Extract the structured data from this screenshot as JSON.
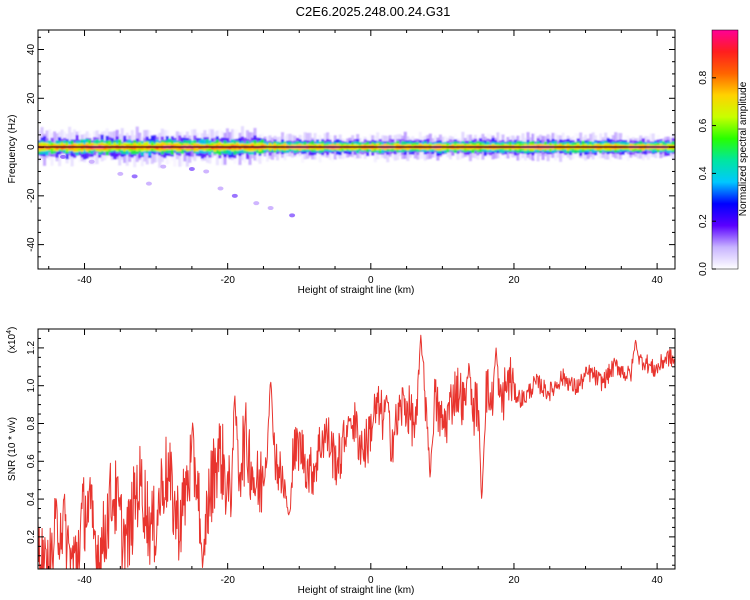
{
  "title": "C2E6.2025.248.00.24.G31",
  "chart_data": [
    {
      "type": "heatmap",
      "title": "C2E6.2025.248.00.24.G31",
      "xlabel": "Height of straight line (km)",
      "ylabel": "Frequency (Hz)",
      "xlim": [
        -46.5,
        42.5
      ],
      "ylim": [
        -50,
        48
      ],
      "xticks": [
        "-40",
        "-20",
        "0",
        "20",
        "40"
      ],
      "yticks": [
        "40",
        "20",
        "0",
        "-20",
        "-40"
      ],
      "ridge_center_hz": 0,
      "ridge_halfwidth_hz": [
        2.5,
        1.5
      ],
      "scattered_points_hz": [
        {
          "x": -43,
          "y": -4
        },
        {
          "x": -39,
          "y": -6
        },
        {
          "x": -35,
          "y": -11
        },
        {
          "x": -33,
          "y": -12
        },
        {
          "x": -31,
          "y": -15
        },
        {
          "x": -29,
          "y": -8
        },
        {
          "x": -25,
          "y": -9
        },
        {
          "x": -23,
          "y": -10
        },
        {
          "x": -21,
          "y": -17
        },
        {
          "x": -19,
          "y": -20
        },
        {
          "x": -16,
          "y": -23
        },
        {
          "x": -14,
          "y": -25
        },
        {
          "x": -11,
          "y": -28
        }
      ],
      "colorbar": {
        "label": "Normalized spectral amplitude",
        "ticks": [
          "0.0",
          "0.2",
          "0.4",
          "0.6",
          "0.8"
        ],
        "range": [
          0,
          1
        ],
        "colors": [
          "#ffffff",
          "#c8b4ff",
          "#5a00ff",
          "#0000ff",
          "#00c8ff",
          "#00e6a0",
          "#28ff00",
          "#c8ff00",
          "#ffd200",
          "#ff6400",
          "#ff1e1e",
          "#ff0096"
        ]
      }
    },
    {
      "type": "line",
      "xlabel": "Height of straight line (km)",
      "ylabel": "SNR (10 * v/v)",
      "yscale_label": "(x10",
      "yscale_exp": "4",
      "yscale_close": ")",
      "xlim": [
        -46.5,
        42.5
      ],
      "ylim": [
        0.03,
        1.3
      ],
      "xticks": [
        "-40",
        "-20",
        "0",
        "20",
        "40"
      ],
      "yticks": [
        "0.2",
        "0.4",
        "0.6",
        "0.8",
        "1.0",
        "1.2"
      ],
      "series_color": "#e8342e",
      "trend": {
        "x": [
          -46.5,
          -40,
          -35,
          -30,
          -25,
          -20,
          -15,
          -12,
          -10,
          -5,
          0,
          5,
          7,
          10,
          15,
          20,
          25,
          30,
          35,
          40,
          42.5
        ],
        "y": [
          0.1,
          0.22,
          0.3,
          0.38,
          0.45,
          0.52,
          0.6,
          0.55,
          0.6,
          0.68,
          0.78,
          0.82,
          0.9,
          0.88,
          0.92,
          0.95,
          1.0,
          1.03,
          1.08,
          1.12,
          1.12
        ]
      },
      "notable_points": [
        {
          "x": -23.5,
          "y": 0.02
        },
        {
          "x": -19,
          "y": 0.95
        },
        {
          "x": -14,
          "y": 1.03
        },
        {
          "x": -11.5,
          "y": 0.3
        },
        {
          "x": -3,
          "y": 0.82
        },
        {
          "x": 2.2,
          "y": 0.95
        },
        {
          "x": 7,
          "y": 1.28
        },
        {
          "x": 8.3,
          "y": 0.5
        },
        {
          "x": 13.7,
          "y": 1.12
        },
        {
          "x": 15.5,
          "y": 0.38
        },
        {
          "x": 17.5,
          "y": 1.2
        },
        {
          "x": 37,
          "y": 1.24
        }
      ]
    }
  ]
}
